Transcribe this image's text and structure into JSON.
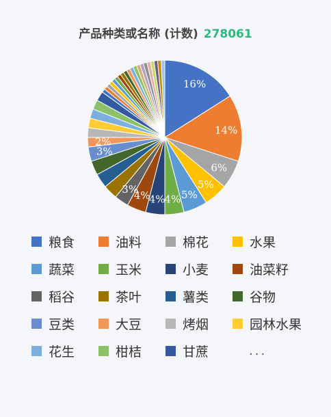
{
  "header": {
    "title": "产品种类或名称 (计数)",
    "count": "278061"
  },
  "legend_more": "...",
  "chart_data": {
    "type": "pie",
    "categories": [
      "粮食",
      "油料",
      "棉花",
      "水果",
      "蔬菜",
      "玉米",
      "小麦",
      "油菜籽",
      "稻谷",
      "茶叶",
      "薯类",
      "谷物",
      "豆类",
      "大豆",
      "烤烟",
      "园林水果",
      "花生",
      "柑桔",
      "甘蔗"
    ],
    "values": [
      16,
      14,
      6,
      5,
      5,
      4,
      4,
      4,
      3,
      3,
      3,
      3,
      3,
      2,
      2,
      2,
      2,
      2,
      2
    ],
    "labels": [
      "16%",
      "14%",
      "6%",
      "5%",
      "5%",
      "4%",
      "4%",
      "4%",
      "3%",
      "",
      "",
      "",
      "3%",
      "2%",
      "",
      "",
      "",
      "",
      ""
    ],
    "colors": [
      "#4472c4",
      "#ed7d31",
      "#a5a5a5",
      "#ffc000",
      "#5b9bd5",
      "#70ad47",
      "#264478",
      "#9e480e",
      "#636363",
      "#997300",
      "#255e91",
      "#43682b",
      "#698ed0",
      "#f1975a",
      "#b7b7b7",
      "#ffcd33",
      "#7cafdd",
      "#8cc168",
      "#335aa1"
    ],
    "other": {
      "value": 15,
      "colors": [
        "#4472c4",
        "#ed7d31",
        "#a5a5a5",
        "#ffc000",
        "#5b9bd5",
        "#70ad47",
        "#9e480e",
        "#997300",
        "#43682b",
        "#f1975a",
        "#7cafdd",
        "#8cc168",
        "#d6b26e",
        "#b3a2c7",
        "#8f8f8f",
        "#e2b0a7",
        "#c9d96f",
        "#6f5a8a",
        "#bf9000",
        "#9dc3e6"
      ]
    }
  }
}
